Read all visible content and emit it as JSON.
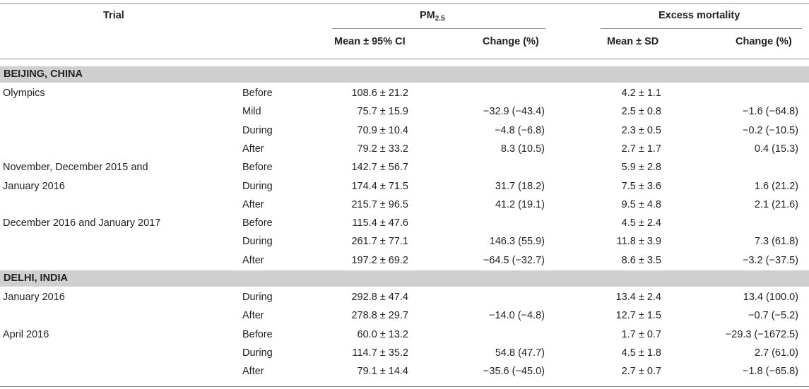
{
  "header": {
    "trial": "Trial",
    "pm_main": "PM",
    "pm_sub": "2.5",
    "excess": "Excess mortality",
    "pm_mean": "Mean ± 95% CI",
    "pm_change": "Change (%)",
    "ex_mean": "Mean ± SD",
    "ex_change": "Change (%)"
  },
  "sections": [
    {
      "label": "BEIJING, CHINA",
      "rows": [
        {
          "trial": "Olympics",
          "phase": "Before",
          "pm_mean": "108.6 ± 21.2",
          "pm_change": "",
          "ex_mean": "4.2 ± 1.1",
          "ex_change": ""
        },
        {
          "trial": "",
          "phase": "Mild",
          "pm_mean": "75.7 ± 15.9",
          "pm_change": "−32.9 (−43.4)",
          "ex_mean": "2.5 ± 0.8",
          "ex_change": "−1.6 (−64.8)"
        },
        {
          "trial": "",
          "phase": "During",
          "pm_mean": "70.9 ± 10.4",
          "pm_change": "−4.8 (−6.8)",
          "ex_mean": "2.3 ± 0.5",
          "ex_change": "−0.2 (−10.5)"
        },
        {
          "trial": "",
          "phase": "After",
          "pm_mean": "79.2 ± 33.2",
          "pm_change": "8.3 (10.5)",
          "ex_mean": "2.7 ± 1.7",
          "ex_change": "0.4 (15.3)"
        },
        {
          "trial": "November, December 2015 and",
          "phase": "Before",
          "pm_mean": "142.7 ± 56.7",
          "pm_change": "",
          "ex_mean": "5.9 ± 2.8",
          "ex_change": ""
        },
        {
          "trial": "January 2016",
          "phase": "During",
          "pm_mean": "174.4 ± 71.5",
          "pm_change": "31.7 (18.2)",
          "ex_mean": "7.5 ± 3.6",
          "ex_change": "1.6 (21.2)"
        },
        {
          "trial": "",
          "phase": "After",
          "pm_mean": "215.7 ± 96.5",
          "pm_change": "41.2 (19.1)",
          "ex_mean": "9.5 ± 4.8",
          "ex_change": "2.1 (21.6)"
        },
        {
          "trial": "December 2016 and January 2017",
          "phase": "Before",
          "pm_mean": "115.4 ± 47.6",
          "pm_change": "",
          "ex_mean": "4.5 ± 2.4",
          "ex_change": ""
        },
        {
          "trial": "",
          "phase": "During",
          "pm_mean": "261.7 ± 77.1",
          "pm_change": "146.3 (55.9)",
          "ex_mean": "11.8 ± 3.9",
          "ex_change": "7.3 (61.8)"
        },
        {
          "trial": "",
          "phase": "After",
          "pm_mean": "197.2 ± 69.2",
          "pm_change": "−64.5 (−32.7)",
          "ex_mean": "8.6 ± 3.5",
          "ex_change": "−3.2 (−37.5)"
        }
      ]
    },
    {
      "label": "DELHI, INDIA",
      "rows": [
        {
          "trial": "January 2016",
          "phase": "During",
          "pm_mean": "292.8 ± 47.4",
          "pm_change": "",
          "ex_mean": "13.4 ± 2.4",
          "ex_change": "13.4 (100.0)"
        },
        {
          "trial": "",
          "phase": "After",
          "pm_mean": "278.8 ± 29.7",
          "pm_change": "−14.0 (−4.8)",
          "ex_mean": "12.7 ± 1.5",
          "ex_change": "−0.7 (−5.2)"
        },
        {
          "trial": "April 2016",
          "phase": "Before",
          "pm_mean": "60.0 ± 13.2",
          "pm_change": "",
          "ex_mean": "1.7 ± 0.7",
          "ex_change": "−29.3 (−1672.5)"
        },
        {
          "trial": "",
          "phase": "During",
          "pm_mean": "114.7 ± 35.2",
          "pm_change": "54.8 (47.7)",
          "ex_mean": "4.5 ± 1.8",
          "ex_change": "2.7 (61.0)"
        },
        {
          "trial": "",
          "phase": "After",
          "pm_mean": "79.1 ± 14.4",
          "pm_change": "−35.6 (−45.0)",
          "ex_mean": "2.7 ± 0.7",
          "ex_change": "−1.8 (−65.8)"
        }
      ]
    }
  ]
}
